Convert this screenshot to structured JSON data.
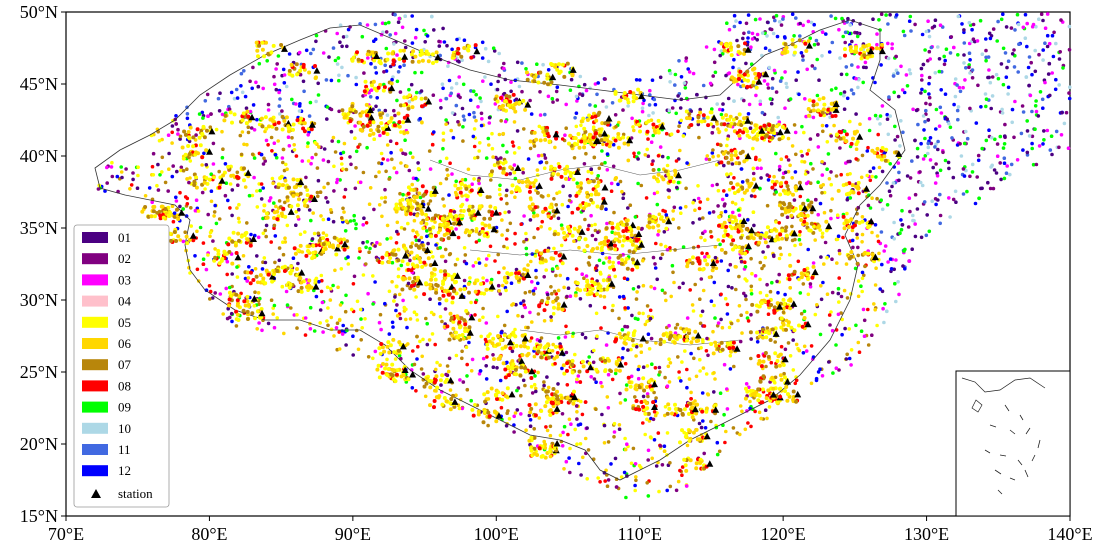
{
  "axes": {
    "x_ticks": [
      "70°E",
      "80°E",
      "90°E",
      "100°E",
      "110°E",
      "120°E",
      "130°E",
      "140°E"
    ],
    "y_ticks": [
      "50°N",
      "45°N",
      "40°N",
      "35°N",
      "30°N",
      "25°N",
      "20°N",
      "15°N"
    ],
    "lon_range": [
      70,
      140
    ],
    "lat_range": [
      15,
      50
    ]
  },
  "legend": {
    "position": "lower-left",
    "items": [
      {
        "label": "01",
        "color": "#4b0082"
      },
      {
        "label": "02",
        "color": "#800080"
      },
      {
        "label": "03",
        "color": "#ff00ff"
      },
      {
        "label": "04",
        "color": "#ffc0cb"
      },
      {
        "label": "05",
        "color": "#ffff00"
      },
      {
        "label": "06",
        "color": "#ffd700"
      },
      {
        "label": "07",
        "color": "#b8860b"
      },
      {
        "label": "08",
        "color": "#ff0000"
      },
      {
        "label": "09",
        "color": "#00ff00"
      },
      {
        "label": "10",
        "color": "#add8e6"
      },
      {
        "label": "11",
        "color": "#4169e1"
      },
      {
        "label": "12",
        "color": "#0000ff"
      }
    ],
    "station_label": "station"
  },
  "map": {
    "inset": "south-china-sea-inset",
    "border_color": "#000000",
    "station_marker": "triangle-icon"
  }
}
